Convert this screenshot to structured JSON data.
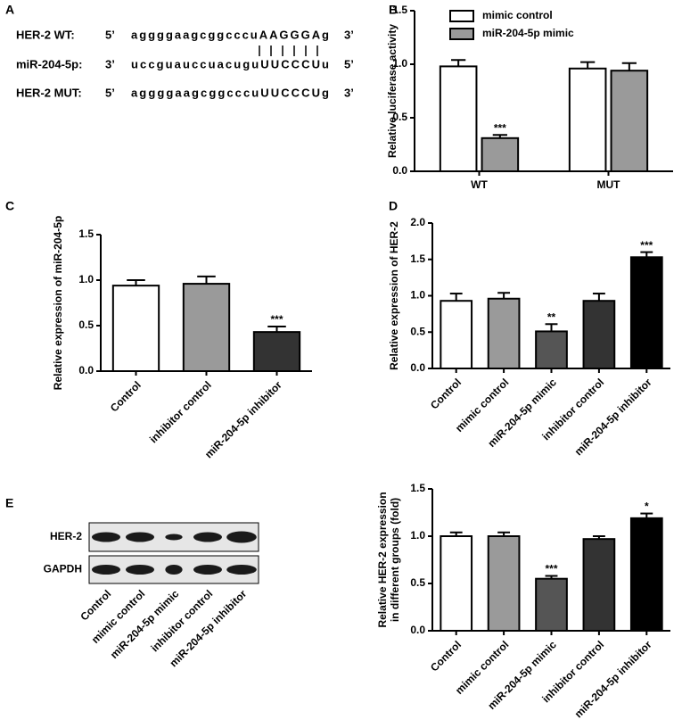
{
  "panel_labels": [
    "A",
    "B",
    "C",
    "D",
    "E"
  ],
  "sequence": {
    "rows": [
      {
        "label": "HER-2 WT:",
        "start": "5’",
        "seq": "aggggaagcggcccuAAGGGAg",
        "end": "3’"
      },
      {
        "label": "miR-204-5p:",
        "start": "3’",
        "seq": "uccguauccuacuguUUCCCUu",
        "end": "5’"
      },
      {
        "label": "HER-2 MUT:",
        "start": "5’",
        "seq": "aggggaagcggcccuUUCCCUg",
        "end": "3’"
      }
    ]
  },
  "blot": {
    "rows": [
      "HER-2",
      "GAPDH"
    ],
    "lanes": [
      "Control",
      "mimic control",
      "miR-204-5p mimic",
      "inhibitor control",
      "miR-204-5p inhibitor"
    ]
  },
  "chart_data": [
    {
      "type": "bar",
      "ylabel": "Relative luciferase activity",
      "categories": [
        "WT",
        "MUT"
      ],
      "series": [
        {
          "name": "mimic control",
          "color": "#ffffff",
          "values": [
            0.98,
            0.96
          ],
          "errors": [
            0.06,
            0.06
          ],
          "annotations": [
            null,
            null
          ]
        },
        {
          "name": "miR-204-5p mimic",
          "color": "#9a9a9a",
          "values": [
            0.31,
            0.94
          ],
          "errors": [
            0.03,
            0.07
          ],
          "annotations": [
            "***",
            null
          ]
        }
      ],
      "ylim": [
        0,
        1.5
      ],
      "yticks": [
        {
          "value": 0,
          "label": "0.0"
        },
        0.5,
        {
          "value": 1,
          "label": "1.0"
        },
        1.5
      ],
      "legend": "upper left"
    },
    {
      "type": "bar",
      "ylabel": "Relative expression of miR-204-5p",
      "categories": [
        "Control",
        "inhibitor control",
        "miR-204-5p inhibitor"
      ],
      "values": [
        0.94,
        0.96,
        0.43
      ],
      "errors": [
        0.06,
        0.08,
        0.06
      ],
      "colors": [
        "#ffffff",
        "#9a9a9a",
        "#333333"
      ],
      "annotations": [
        null,
        null,
        "***"
      ],
      "ylim": [
        0,
        1.5
      ],
      "yticks": [
        {
          "value": 0,
          "label": "0.0"
        },
        0.5,
        {
          "value": 1,
          "label": "1.0"
        },
        1.5
      ]
    },
    {
      "type": "bar",
      "ylabel": "Relative expression of HER-2",
      "categories": [
        "Control",
        "mimic control",
        "miR-204-5p mimic",
        "inhibitor control",
        "miR-204-5p inhibitor"
      ],
      "values": [
        0.93,
        0.96,
        0.51,
        0.93,
        1.53
      ],
      "errors": [
        0.1,
        0.08,
        0.1,
        0.1,
        0.07
      ],
      "colors": [
        "#ffffff",
        "#9a9a9a",
        "#555555",
        "#333333",
        "#000000"
      ],
      "annotations": [
        null,
        null,
        "**",
        null,
        "***"
      ],
      "ylim": [
        0,
        2
      ],
      "yticks": [
        {
          "value": 0,
          "label": "0.0"
        },
        0.5,
        {
          "value": 1,
          "label": "1.0"
        },
        1.5,
        {
          "value": 2,
          "label": "2.0"
        }
      ]
    },
    {
      "type": "bar",
      "ylabel": [
        "Relative HER-2 expression",
        "in different groups (fold)"
      ],
      "categories": [
        "Control",
        "mimic control",
        "miR-204-5p mimic",
        "inhibitor control",
        "miR-204-5p inhibitor"
      ],
      "values": [
        1.0,
        1.0,
        0.55,
        0.97,
        1.19
      ],
      "errors": [
        0.04,
        0.04,
        0.03,
        0.03,
        0.05
      ],
      "colors": [
        "#ffffff",
        "#9a9a9a",
        "#555555",
        "#333333",
        "#000000"
      ],
      "annotations": [
        null,
        null,
        "***",
        null,
        "*"
      ],
      "ylim": [
        0,
        1.5
      ],
      "yticks": [
        {
          "value": 0,
          "label": "0.0"
        },
        0.5,
        {
          "value": 1,
          "label": "1.0"
        },
        1.5
      ]
    }
  ]
}
